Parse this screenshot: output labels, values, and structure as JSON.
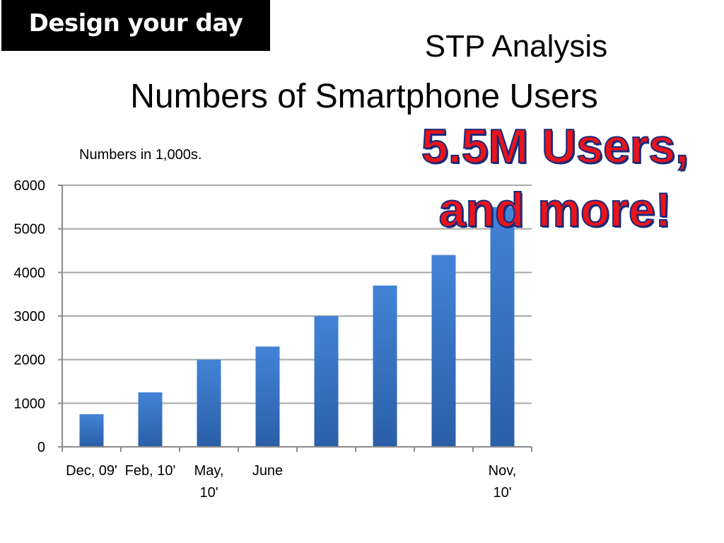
{
  "badge": {
    "text": "Design your day"
  },
  "title": {
    "line1": "STP Analysis",
    "line2": "Numbers of Smartphone Users"
  },
  "units_note": "Numbers in 1,000s.",
  "callout": {
    "line1": "5.5M Users,",
    "line2": "and more!"
  },
  "colors": {
    "bar_top": "#4383d6",
    "bar_bottom": "#2a5fa8",
    "callout_fill": "#e8141b",
    "callout_outline": "#1a2a7a"
  },
  "chart_data": {
    "type": "bar",
    "categories": [
      "Dec, 09'",
      "Feb, 10'",
      "May, 10'",
      "June",
      "",
      "",
      "",
      "Nov, 10'"
    ],
    "category_label_lines": [
      [
        "Dec, 09'"
      ],
      [
        "Feb, 10'"
      ],
      [
        "May,",
        "10'"
      ],
      [
        "June"
      ],
      [
        ""
      ],
      [
        ""
      ],
      [
        ""
      ],
      [
        "Nov,",
        "10'"
      ]
    ],
    "values": [
      750,
      1250,
      2000,
      2300,
      3000,
      3700,
      4400,
      5500
    ],
    "ylim": [
      0,
      6000
    ],
    "yticks": [
      "0",
      "1000",
      "2000",
      "3000",
      "4000",
      "5000",
      "6000"
    ],
    "grid": true,
    "legend": "none"
  }
}
